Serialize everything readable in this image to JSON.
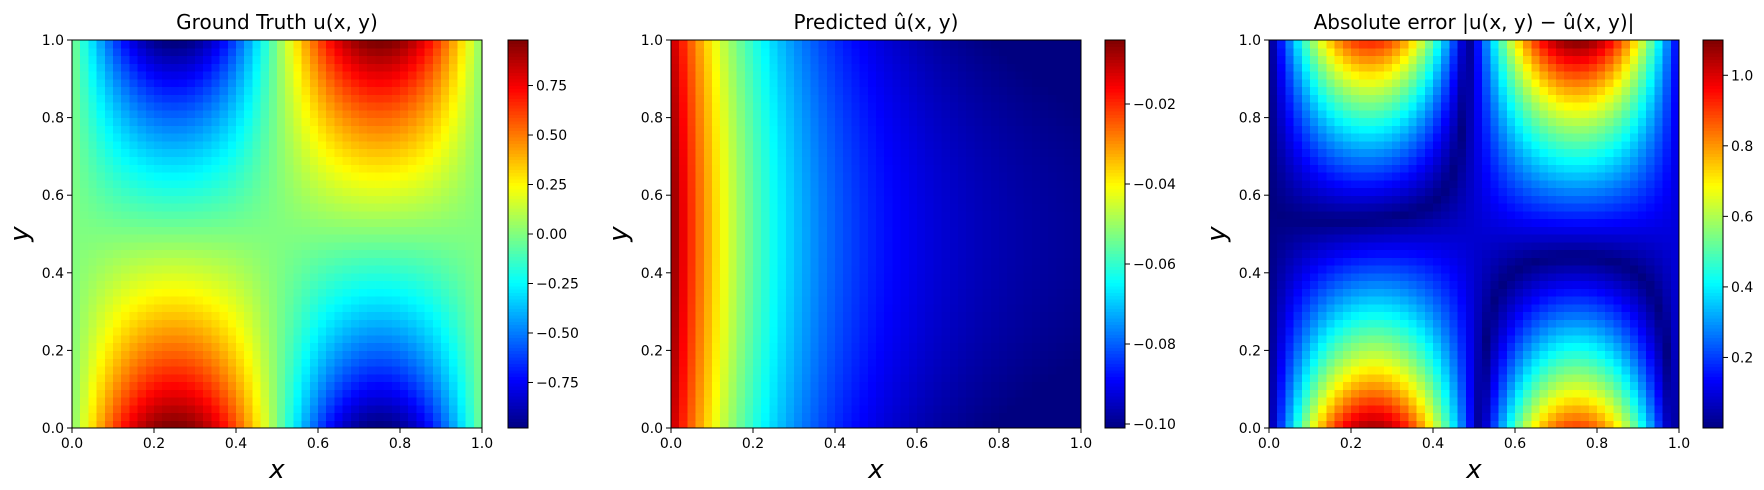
{
  "chart_data": [
    {
      "type": "heatmap",
      "title": "Ground Truth u(x, y)",
      "xlabel": "x",
      "ylabel": "y",
      "xlim": [
        0,
        1
      ],
      "ylim": [
        0,
        1
      ],
      "x_ticks": [
        0.0,
        0.2,
        0.4,
        0.6,
        0.8,
        1.0
      ],
      "x_tick_labels": [
        "0.0",
        "0.2",
        "0.4",
        "0.6",
        "0.8",
        "1.0"
      ],
      "y_ticks": [
        0.0,
        0.2,
        0.4,
        0.6,
        0.8,
        1.0
      ],
      "y_tick_labels": [
        "0.0",
        "0.2",
        "0.4",
        "0.6",
        "0.8",
        "1.0"
      ],
      "colormap": "jet",
      "grid_resolution": 50,
      "field": "sin(2*pi*x) * cos(pi*y) * exp(-2.6*y*(1-y))",
      "colorbar_range": [
        -0.98,
        0.98
      ],
      "colorbar_ticks": [
        0.75,
        0.5,
        0.25,
        0.0,
        -0.25,
        -0.5,
        -0.75
      ],
      "colorbar_tick_labels": [
        "0.75",
        "0.50",
        "0.25",
        "0.00",
        "−0.25",
        "−0.50",
        "−0.75"
      ]
    },
    {
      "type": "heatmap",
      "title": "Predicted û(x, y)",
      "xlabel": "x",
      "ylabel": "y",
      "xlim": [
        0,
        1
      ],
      "ylim": [
        0,
        1
      ],
      "x_ticks": [
        0.0,
        0.2,
        0.4,
        0.6,
        0.8,
        1.0
      ],
      "x_tick_labels": [
        "0.0",
        "0.2",
        "0.4",
        "0.6",
        "0.8",
        "1.0"
      ],
      "y_ticks": [
        0.0,
        0.2,
        0.4,
        0.6,
        0.8,
        1.0
      ],
      "y_tick_labels": [
        "0.0",
        "0.2",
        "0.4",
        "0.6",
        "0.8",
        "1.0"
      ],
      "colormap": "jet",
      "grid_resolution": 50,
      "field": "-0.004 - 0.097*(1 - exp(-3.8*x)) - 0.005*(2*y-1)^2",
      "colorbar_range": [
        -0.101,
        -0.004
      ],
      "colorbar_ticks": [
        -0.02,
        -0.04,
        -0.06,
        -0.08,
        -0.1
      ],
      "colorbar_tick_labels": [
        "−0.02",
        "−0.04",
        "−0.06",
        "−0.08",
        "−0.10"
      ]
    },
    {
      "type": "heatmap",
      "title": "Absolute error |u(x, y) − û(x, y)|",
      "xlabel": "x",
      "ylabel": "y",
      "xlim": [
        0,
        1
      ],
      "ylim": [
        0,
        1
      ],
      "x_ticks": [
        0.0,
        0.2,
        0.4,
        0.6,
        0.8,
        1.0
      ],
      "x_tick_labels": [
        "0.0",
        "0.2",
        "0.4",
        "0.6",
        "0.8",
        "1.0"
      ],
      "y_ticks": [
        0.0,
        0.2,
        0.4,
        0.6,
        0.8,
        1.0
      ],
      "y_tick_labels": [
        "0.0",
        "0.2",
        "0.4",
        "0.6",
        "0.8",
        "1.0"
      ],
      "colormap": "jet",
      "grid_resolution": 50,
      "field": "abs(u - û)",
      "colorbar_range": [
        0.0,
        1.1
      ],
      "colorbar_ticks": [
        1.0,
        0.8,
        0.6,
        0.4,
        0.2
      ],
      "colorbar_tick_labels": [
        "1.0",
        "0.8",
        "0.6",
        "0.4",
        "0.2"
      ]
    }
  ]
}
